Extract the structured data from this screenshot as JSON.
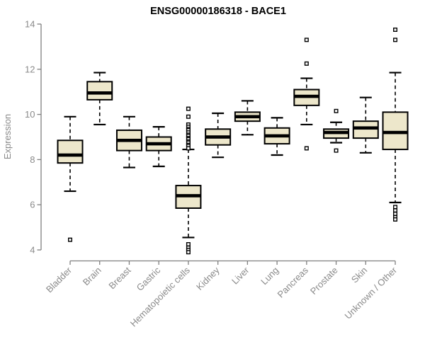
{
  "chart_data": {
    "type": "boxplot",
    "title": "ENSG00000186318 - BACE1",
    "xlabel": "",
    "ylabel": "Expression",
    "ylim": [
      4,
      14
    ],
    "yticks": [
      4,
      6,
      8,
      10,
      12,
      14
    ],
    "grid": false,
    "legend": false,
    "categories": [
      "Bladder",
      "Brain",
      "Breast",
      "Gastric",
      "Hematopoietic cells",
      "Kidney",
      "Liver",
      "Lung",
      "Pancreas",
      "Prostate",
      "Skin",
      "Unknown / Other"
    ],
    "series": [
      {
        "name": "Bladder",
        "whisker_low": 6.6,
        "q1": 7.85,
        "median": 8.2,
        "q3": 8.85,
        "whisker_high": 9.9,
        "outliers": [
          4.45
        ]
      },
      {
        "name": "Brain",
        "whisker_low": 9.55,
        "q1": 10.65,
        "median": 10.95,
        "q3": 11.45,
        "whisker_high": 11.85,
        "outliers": []
      },
      {
        "name": "Breast",
        "whisker_low": 7.65,
        "q1": 8.4,
        "median": 8.85,
        "q3": 9.3,
        "whisker_high": 9.9,
        "outliers": []
      },
      {
        "name": "Gastric",
        "whisker_low": 7.7,
        "q1": 8.4,
        "median": 8.7,
        "q3": 9.0,
        "whisker_high": 9.45,
        "outliers": []
      },
      {
        "name": "Hematopoietic cells",
        "whisker_low": 4.55,
        "q1": 5.85,
        "median": 6.4,
        "q3": 6.85,
        "whisker_high": 8.45,
        "outliers": [
          10.25,
          9.9,
          9.55,
          9.45,
          9.35,
          9.3,
          9.2,
          9.1,
          9.05,
          8.95,
          8.9,
          8.8,
          8.75,
          8.65,
          8.6,
          8.5,
          4.25,
          4.1,
          4.0,
          3.9
        ]
      },
      {
        "name": "Kidney",
        "whisker_low": 8.1,
        "q1": 8.65,
        "median": 9.0,
        "q3": 9.35,
        "whisker_high": 10.05,
        "outliers": []
      },
      {
        "name": "Liver",
        "whisker_low": 9.1,
        "q1": 9.7,
        "median": 9.9,
        "q3": 10.1,
        "whisker_high": 10.6,
        "outliers": []
      },
      {
        "name": "Lung",
        "whisker_low": 8.2,
        "q1": 8.7,
        "median": 9.05,
        "q3": 9.4,
        "whisker_high": 9.85,
        "outliers": []
      },
      {
        "name": "Pancreas",
        "whisker_low": 9.55,
        "q1": 10.4,
        "median": 10.8,
        "q3": 11.1,
        "whisker_high": 11.6,
        "outliers": [
          13.3,
          12.25,
          8.5
        ]
      },
      {
        "name": "Prostate",
        "whisker_low": 8.75,
        "q1": 8.95,
        "median": 9.2,
        "q3": 9.35,
        "whisker_high": 9.65,
        "outliers": [
          10.15,
          8.4
        ]
      },
      {
        "name": "Skin",
        "whisker_low": 8.3,
        "q1": 8.95,
        "median": 9.4,
        "q3": 9.7,
        "whisker_high": 10.75,
        "outliers": []
      },
      {
        "name": "Unknown / Other",
        "whisker_low": 6.1,
        "q1": 8.45,
        "median": 9.2,
        "q3": 10.1,
        "whisker_high": 11.85,
        "outliers": [
          13.75,
          13.3,
          5.9,
          5.75,
          5.6,
          5.45,
          5.35
        ]
      }
    ],
    "colors": {
      "box_fill": "#EDE7CB",
      "box_border": "#000000",
      "median": "#000000",
      "whisker": "#000000",
      "outlier": "#000000",
      "axis": "#808080",
      "tick_text": "#8a8a8a",
      "title_text": "#000000",
      "background": "#ffffff"
    }
  }
}
